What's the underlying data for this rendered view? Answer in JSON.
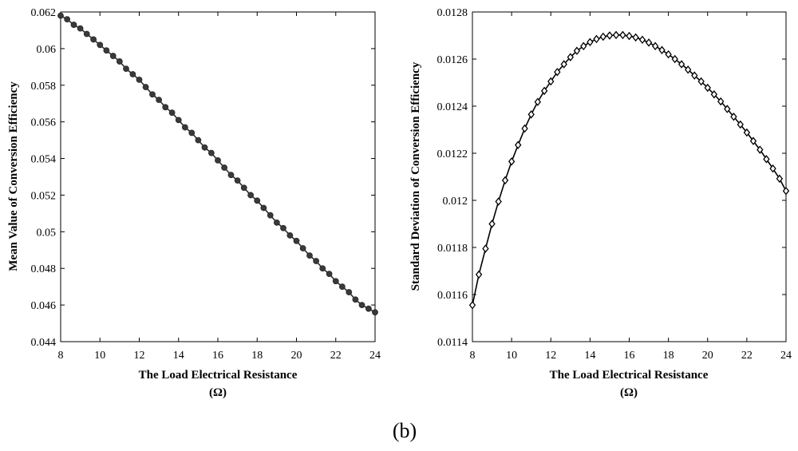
{
  "figure": {
    "caption": "(b)"
  },
  "chart_data": [
    {
      "type": "line",
      "marker": "circle",
      "line_color": "#2b2b2b",
      "xlabel": "The Load Electrical Resistance",
      "xunit": "(Ω)",
      "ylabel": "Mean Value of Conversion Efficiency",
      "xlim": [
        8,
        24
      ],
      "ylim": [
        0.044,
        0.062
      ],
      "xticks": [
        8,
        10,
        12,
        14,
        16,
        18,
        20,
        22,
        24
      ],
      "yticks": [
        0.044,
        0.046,
        0.048,
        0.05,
        0.052,
        0.054,
        0.056,
        0.058,
        0.06,
        0.062
      ],
      "ytick_labels": [
        "0.044",
        "0.046",
        "0.048",
        "0.05",
        "0.052",
        "0.054",
        "0.056",
        "0.058",
        "0.06",
        "0.062"
      ],
      "grid": false,
      "series": [
        {
          "x": [
            8.0,
            8.33,
            8.67,
            9.0,
            9.33,
            9.67,
            10.0,
            10.33,
            10.67,
            11.0,
            11.33,
            11.67,
            12.0,
            12.33,
            12.67,
            13.0,
            13.33,
            13.67,
            14.0,
            14.33,
            14.67,
            15.0,
            15.33,
            15.67,
            16.0,
            16.33,
            16.67,
            17.0,
            17.33,
            17.67,
            18.0,
            18.33,
            18.67,
            19.0,
            19.33,
            19.67,
            20.0,
            20.33,
            20.67,
            21.0,
            21.33,
            21.67,
            22.0,
            22.33,
            22.67,
            23.0,
            23.33,
            23.67,
            24.0
          ],
          "y": [
            0.0618,
            0.0616,
            0.0613,
            0.0611,
            0.0608,
            0.0605,
            0.0602,
            0.0599,
            0.0596,
            0.0593,
            0.0589,
            0.0586,
            0.0583,
            0.0579,
            0.0575,
            0.0572,
            0.0568,
            0.0565,
            0.0561,
            0.0557,
            0.0554,
            0.055,
            0.0546,
            0.0543,
            0.0539,
            0.0535,
            0.0531,
            0.0528,
            0.0524,
            0.052,
            0.0517,
            0.0513,
            0.0509,
            0.0505,
            0.0502,
            0.0498,
            0.0495,
            0.0491,
            0.0487,
            0.0484,
            0.048,
            0.0477,
            0.0473,
            0.047,
            0.0467,
            0.0463,
            0.046,
            0.0458,
            0.0456
          ]
        }
      ]
    },
    {
      "type": "line",
      "marker": "diamond",
      "line_color": "#000000",
      "xlabel": "The Load Electrical Resistance",
      "xunit": "(Ω)",
      "ylabel": "Standard Deviation of Conversion Efficiency",
      "xlim": [
        8,
        24
      ],
      "ylim": [
        0.0114,
        0.0128
      ],
      "xticks": [
        8,
        10,
        12,
        14,
        16,
        18,
        20,
        22,
        24
      ],
      "yticks": [
        0.0114,
        0.0116,
        0.0118,
        0.012,
        0.0122,
        0.0124,
        0.0126,
        0.0128
      ],
      "ytick_labels": [
        "0.0114",
        "0.0116",
        "0.0118",
        "0.012",
        "0.0122",
        "0.0124",
        "0.0126",
        "0.0128"
      ],
      "grid": false,
      "series": [
        {
          "x": [
            8.0,
            8.33,
            8.67,
            9.0,
            9.33,
            9.67,
            10.0,
            10.33,
            10.67,
            11.0,
            11.33,
            11.67,
            12.0,
            12.33,
            12.67,
            13.0,
            13.33,
            13.67,
            14.0,
            14.33,
            14.67,
            15.0,
            15.33,
            15.67,
            16.0,
            16.33,
            16.67,
            17.0,
            17.33,
            17.67,
            18.0,
            18.33,
            18.67,
            19.0,
            19.33,
            19.67,
            20.0,
            20.33,
            20.67,
            21.0,
            21.33,
            21.67,
            22.0,
            22.33,
            22.67,
            23.0,
            23.33,
            23.67,
            24.0
          ],
          "y": [
            0.011555,
            0.011685,
            0.011795,
            0.0119,
            0.011995,
            0.012085,
            0.012165,
            0.012235,
            0.012305,
            0.012365,
            0.012418,
            0.012465,
            0.012505,
            0.012545,
            0.012578,
            0.012608,
            0.012635,
            0.012655,
            0.012672,
            0.012685,
            0.012695,
            0.0127,
            0.012702,
            0.012702,
            0.012698,
            0.012692,
            0.012682,
            0.01267,
            0.012655,
            0.012638,
            0.01262,
            0.0126,
            0.012578,
            0.012555,
            0.01253,
            0.012505,
            0.012478,
            0.01245,
            0.01242,
            0.012388,
            0.012355,
            0.012322,
            0.012288,
            0.012252,
            0.012215,
            0.012175,
            0.012135,
            0.012092,
            0.01204
          ]
        }
      ]
    }
  ]
}
